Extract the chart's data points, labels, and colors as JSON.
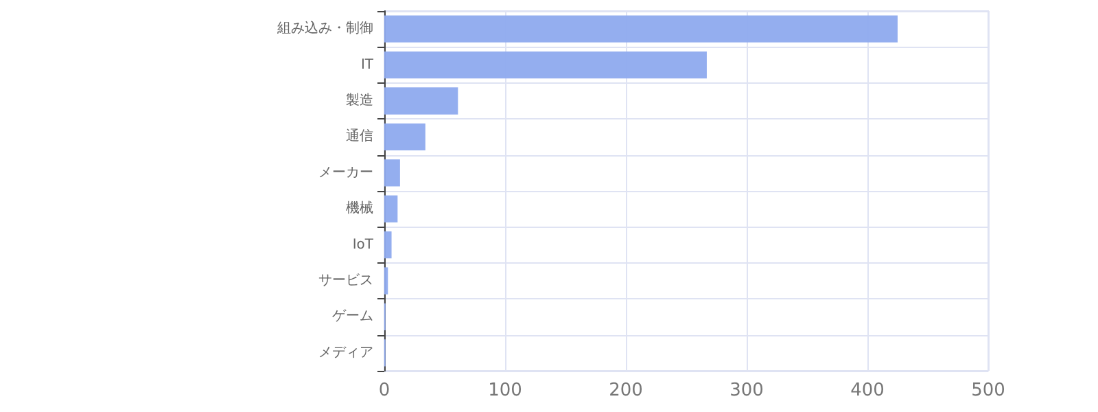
{
  "chart_data": {
    "type": "bar",
    "orientation": "horizontal",
    "categories": [
      "組み込み・制御",
      "IT",
      "製造",
      "通信",
      "メーカー",
      "機械",
      "IoT",
      "サービス",
      "ゲーム",
      "メディア"
    ],
    "values": [
      425,
      267,
      61,
      34,
      13,
      11,
      6,
      3,
      1,
      1
    ],
    "color": "#8eaaee",
    "xlim": [
      0,
      500
    ],
    "xticks": [
      0,
      100,
      200,
      300,
      400,
      500
    ],
    "grid": true
  }
}
